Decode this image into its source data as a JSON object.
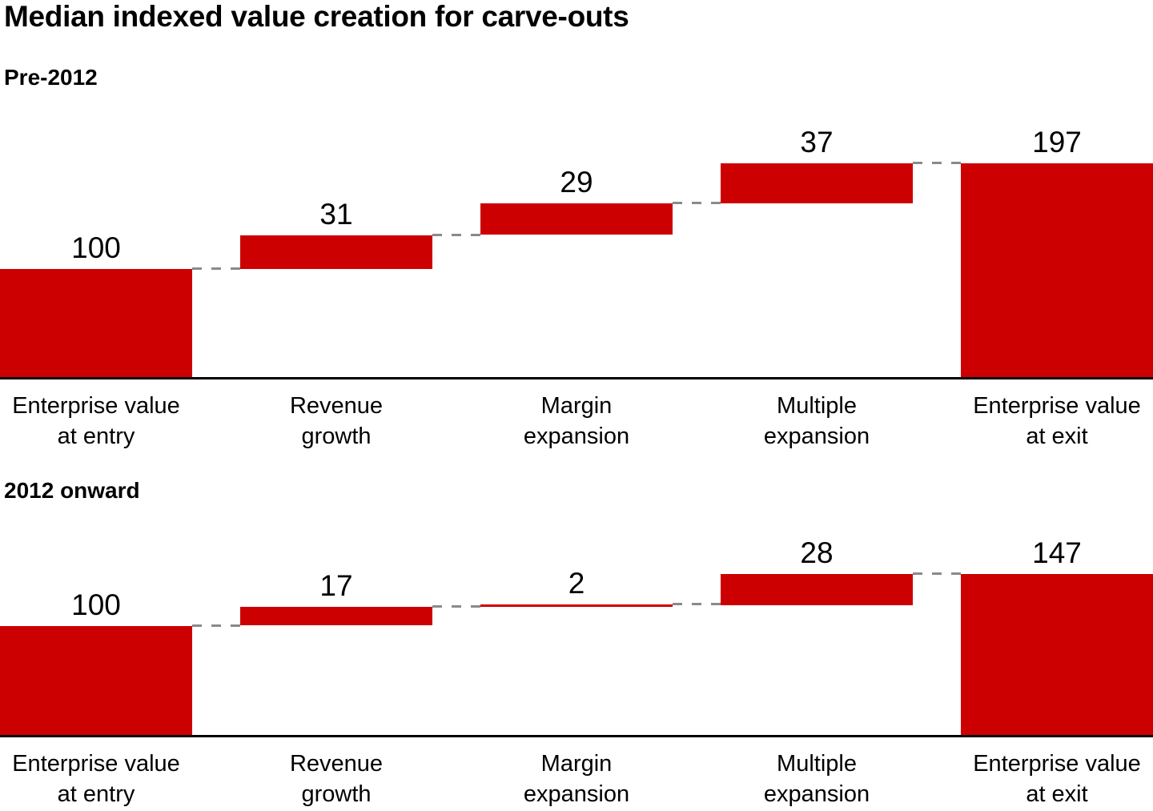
{
  "title": "Median indexed value creation for carve-outs",
  "colors": {
    "bar_red": "#cc0000",
    "connector_gray": "#8a8a8a",
    "axis_black": "#000000",
    "text_black": "#000000"
  },
  "chart_data": [
    {
      "type": "waterfall",
      "title": "Pre-2012",
      "categories": [
        [
          "Enterprise value",
          "at entry"
        ],
        [
          "Revenue",
          "growth"
        ],
        [
          "Margin",
          "expansion"
        ],
        [
          "Multiple",
          "expansion"
        ],
        [
          "Enterprise value",
          "at exit"
        ]
      ],
      "values": [
        100,
        31,
        29,
        37,
        197
      ],
      "step_kinds": [
        "total",
        "delta",
        "delta",
        "delta",
        "total"
      ],
      "value_labels": [
        "100",
        "31",
        "29",
        "37",
        "197"
      ],
      "ylim": [
        0,
        245
      ],
      "grid": false,
      "legend": false
    },
    {
      "type": "waterfall",
      "title": "2012 onward",
      "categories": [
        [
          "Enterprise value",
          "at entry"
        ],
        [
          "Revenue",
          "growth"
        ],
        [
          "Margin",
          "expansion"
        ],
        [
          "Multiple",
          "expansion"
        ],
        [
          "Enterprise value",
          "at exit"
        ]
      ],
      "values": [
        100,
        17,
        2,
        28,
        147
      ],
      "step_kinds": [
        "total",
        "delta",
        "delta",
        "delta",
        "total"
      ],
      "value_labels": [
        "100",
        "17",
        "2",
        "28",
        "147"
      ],
      "ylim": [
        0,
        196
      ],
      "grid": false,
      "legend": false
    }
  ]
}
